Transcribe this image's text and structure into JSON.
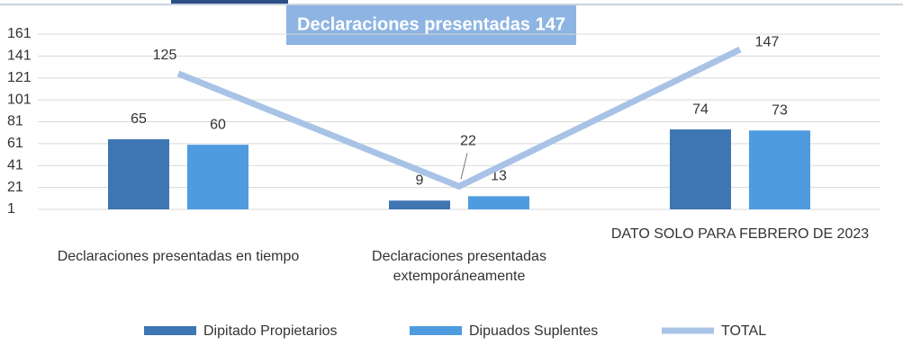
{
  "chart_data": {
    "type": "bar_line",
    "title": "Declaraciones presentadas  147",
    "categories": [
      "Declaraciones presentadas en tiempo",
      "Declaraciones presentadas extemporáneamente",
      "DATO SOLO PARA FEBRERO DE 2023"
    ],
    "series": [
      {
        "name": "Dipitado Propietarios",
        "color": "#3e75b3",
        "values": [
          65,
          9,
          74
        ]
      },
      {
        "name": "Dipuados Suplentes",
        "color": "#4e9be0",
        "values": [
          60,
          13,
          73
        ]
      },
      {
        "name": "TOTAL",
        "color": "#a8c3e6",
        "type": "line",
        "values": [
          125,
          22,
          147
        ]
      }
    ],
    "ylim": [
      1,
      161
    ],
    "yticks": [
      1,
      21,
      41,
      61,
      81,
      101,
      121,
      141,
      161
    ],
    "grid": true,
    "legend": "bottom"
  }
}
